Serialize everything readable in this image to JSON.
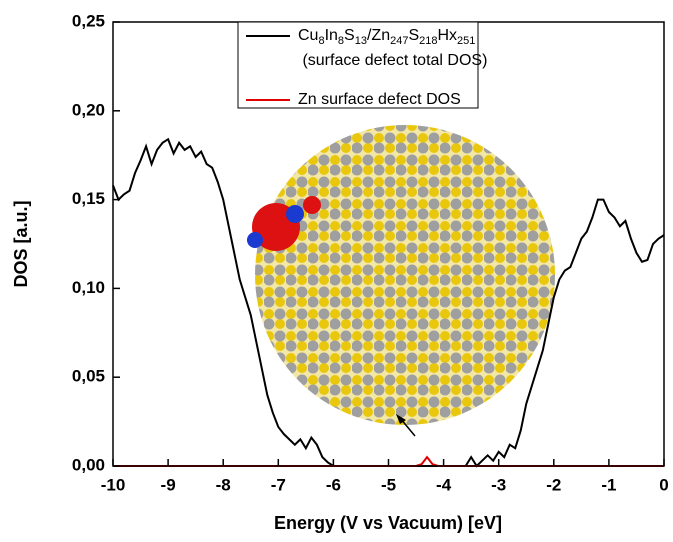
{
  "chart_data": {
    "type": "line",
    "xlabel": "Energy (V vs Vacuum) [eV]",
    "ylabel": "DOS [a.u.]",
    "x": [
      -10,
      -9.9,
      -9.8,
      -9.7,
      -9.6,
      -9.5,
      -9.4,
      -9.3,
      -9.2,
      -9.1,
      -9,
      -8.9,
      -8.8,
      -8.7,
      -8.6,
      -8.5,
      -8.4,
      -8.3,
      -8.2,
      -8.1,
      -8,
      -7.9,
      -7.8,
      -7.7,
      -7.6,
      -7.5,
      -7.4,
      -7.3,
      -7.2,
      -7.1,
      -7,
      -6.9,
      -6.8,
      -6.7,
      -6.6,
      -6.5,
      -6.4,
      -6.3,
      -6.2,
      -6.1,
      -6,
      -5.9,
      -5.8,
      -5.7,
      -5.6,
      -5.5,
      -5.4,
      -5.3,
      -5.2,
      -5.1,
      -5,
      -4.9,
      -4.8,
      -4.7,
      -4.6,
      -4.5,
      -4.4,
      -4.3,
      -4.2,
      -4.1,
      -4,
      -3.9,
      -3.8,
      -3.7,
      -3.6,
      -3.5,
      -3.4,
      -3.3,
      -3.2,
      -3.1,
      -3,
      -2.9,
      -2.8,
      -2.7,
      -2.6,
      -2.5,
      -2.4,
      -2.3,
      -2.2,
      -2.1,
      -2,
      -1.9,
      -1.8,
      -1.7,
      -1.6,
      -1.5,
      -1.4,
      -1.3,
      -1.2,
      -1.1,
      -1,
      -0.9,
      -0.8,
      -0.7,
      -0.6,
      -0.5,
      -0.4,
      -0.3,
      -0.2,
      -0.1,
      0
    ],
    "series": [
      {
        "name": "Cu8In8S13/Zn247S218Hx251 (surface defect total DOS)",
        "color": "#000000",
        "values": [
          0.158,
          0.15,
          0.153,
          0.155,
          0.165,
          0.172,
          0.18,
          0.17,
          0.178,
          0.182,
          0.184,
          0.176,
          0.182,
          0.178,
          0.18,
          0.174,
          0.177,
          0.17,
          0.168,
          0.16,
          0.15,
          0.135,
          0.12,
          0.105,
          0.095,
          0.085,
          0.07,
          0.055,
          0.04,
          0.03,
          0.022,
          0.018,
          0.015,
          0.012,
          0.015,
          0.01,
          0.016,
          0.012,
          0.005,
          0.002,
          0,
          0,
          0,
          0,
          0,
          0,
          0,
          0,
          0,
          0,
          0,
          0,
          0,
          0,
          0,
          0,
          0,
          0,
          0,
          0,
          0,
          0,
          0,
          0,
          0,
          0.005,
          0,
          0.003,
          0.006,
          0.003,
          0.008,
          0.005,
          0.012,
          0.01,
          0.02,
          0.035,
          0.045,
          0.055,
          0.065,
          0.08,
          0.095,
          0.105,
          0.11,
          0.112,
          0.12,
          0.128,
          0.132,
          0.14,
          0.15,
          0.15,
          0.143,
          0.14,
          0.135,
          0.138,
          0.128,
          0.12,
          0.115,
          0.116,
          0.125,
          0.128,
          0.13
        ]
      },
      {
        "name": "Zn surface defect DOS",
        "color": "#e00000",
        "values": [
          0,
          0,
          0,
          0,
          0,
          0,
          0,
          0,
          0,
          0,
          0,
          0,
          0,
          0,
          0,
          0,
          0,
          0,
          0,
          0,
          0,
          0,
          0,
          0,
          0,
          0,
          0,
          0,
          0,
          0,
          0,
          0,
          0,
          0,
          0,
          0,
          0,
          0,
          0,
          0,
          0,
          0,
          0,
          0,
          0,
          0,
          0,
          0,
          0,
          0,
          0,
          0,
          0,
          0,
          0,
          0,
          0.001,
          0.005,
          0.001,
          0,
          0,
          0,
          0,
          0,
          0,
          0,
          0,
          0,
          0,
          0,
          0,
          0,
          0,
          0,
          0,
          0,
          0,
          0,
          0,
          0,
          0,
          0,
          0,
          0,
          0,
          0,
          0,
          0,
          0,
          0,
          0,
          0,
          0,
          0,
          0,
          0,
          0,
          0,
          0,
          0,
          0
        ]
      }
    ],
    "xlim": [
      -10,
      0
    ],
    "xticks": [
      -10,
      -9,
      -8,
      -7,
      -6,
      -5,
      -4,
      -3,
      -2,
      -1,
      0
    ],
    "ylim": [
      0,
      0.25
    ],
    "yticks": [
      {
        "value": 0,
        "label": "0,00"
      },
      {
        "value": 0.05,
        "label": "0,05"
      },
      {
        "value": 0.1,
        "label": "0,10"
      },
      {
        "value": 0.15,
        "label": "0,15"
      },
      {
        "value": 0.2,
        "label": "0,20"
      },
      {
        "value": 0.25,
        "label": "0,25"
      }
    ],
    "grid": false,
    "legend": "top"
  }
}
